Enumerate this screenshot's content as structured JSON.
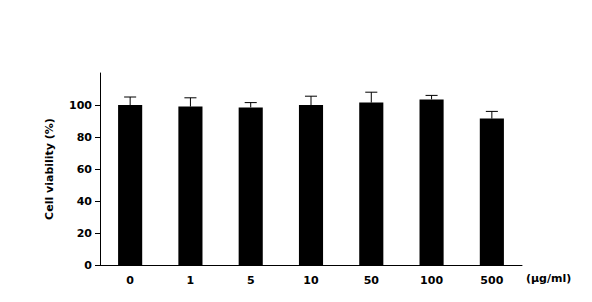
{
  "chart_data": {
    "type": "bar",
    "x_label": "(μg/ml)",
    "y_label": "Cell viability (%)",
    "categories": [
      "0",
      "1",
      "5",
      "10",
      "50",
      "100",
      "500"
    ],
    "values": [
      100,
      99,
      98.5,
      100,
      101.5,
      103.5,
      91.5
    ],
    "errors": [
      5,
      5.5,
      3,
      5.5,
      6.5,
      2.5,
      4.5
    ],
    "color": "#000000",
    "ylim": [
      0,
      120
    ],
    "yticks": [
      0,
      20,
      40,
      60,
      80,
      100
    ],
    "grid": false
  }
}
